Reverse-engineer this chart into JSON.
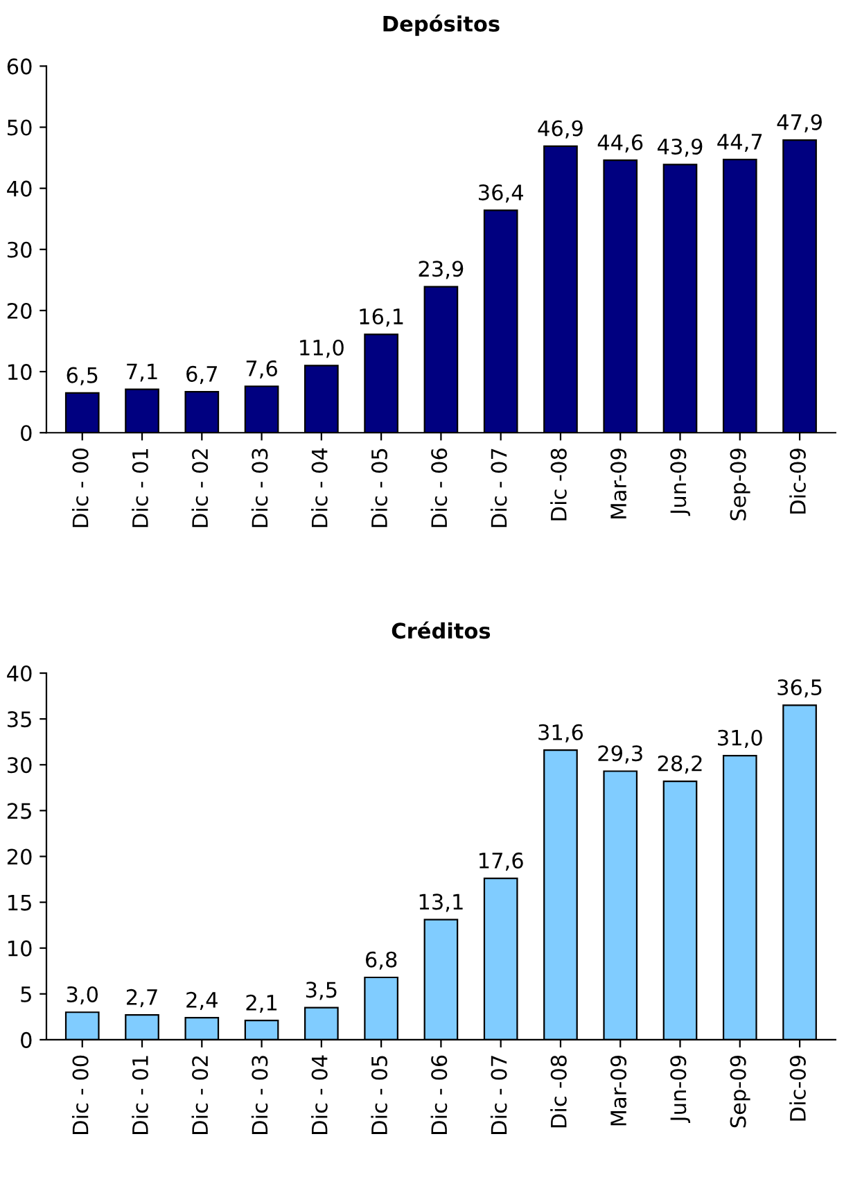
{
  "chart_data": [
    {
      "type": "bar",
      "title": "Depósitos",
      "categories": [
        "Dic - 00",
        "Dic - 01",
        "Dic - 02",
        "Dic - 03",
        "Dic - 04",
        "Dic - 05",
        "Dic - 06",
        "Dic - 07",
        "Dic -08",
        "Mar-09",
        "Jun-09",
        "Sep-09",
        "Dic-09"
      ],
      "values": [
        6.5,
        7.1,
        6.7,
        7.6,
        11.0,
        16.1,
        23.9,
        36.4,
        46.9,
        44.6,
        43.9,
        44.7,
        47.9
      ],
      "value_labels": [
        "6,5",
        "7,1",
        "6,7",
        "7,6",
        "11,0",
        "16,1",
        "23,9",
        "36,4",
        "46,9",
        "44,6",
        "43,9",
        "44,7",
        "47,9"
      ],
      "color": "#000080",
      "ylim": [
        0,
        60
      ],
      "yticks": [
        0,
        10,
        20,
        30,
        40,
        50,
        60
      ],
      "grid": false,
      "legend": false
    },
    {
      "type": "bar",
      "title": "Créditos",
      "categories": [
        "Dic - 00",
        "Dic - 01",
        "Dic - 02",
        "Dic - 03",
        "Dic - 04",
        "Dic - 05",
        "Dic - 06",
        "Dic - 07",
        "Dic -08",
        "Mar-09",
        "Jun-09",
        "Sep-09",
        "Dic-09"
      ],
      "values": [
        3.0,
        2.7,
        2.4,
        2.1,
        3.5,
        6.8,
        13.1,
        17.6,
        31.6,
        29.3,
        28.2,
        31.0,
        36.5
      ],
      "value_labels": [
        "3,0",
        "2,7",
        "2,4",
        "2,1",
        "3,5",
        "6,8",
        "13,1",
        "17,6",
        "31,6",
        "29,3",
        "28,2",
        "31,0",
        "36,5"
      ],
      "color": "#80ccff",
      "ylim": [
        0,
        40
      ],
      "yticks": [
        0,
        5,
        10,
        15,
        20,
        25,
        30,
        35,
        40
      ],
      "grid": false,
      "legend": false
    }
  ]
}
